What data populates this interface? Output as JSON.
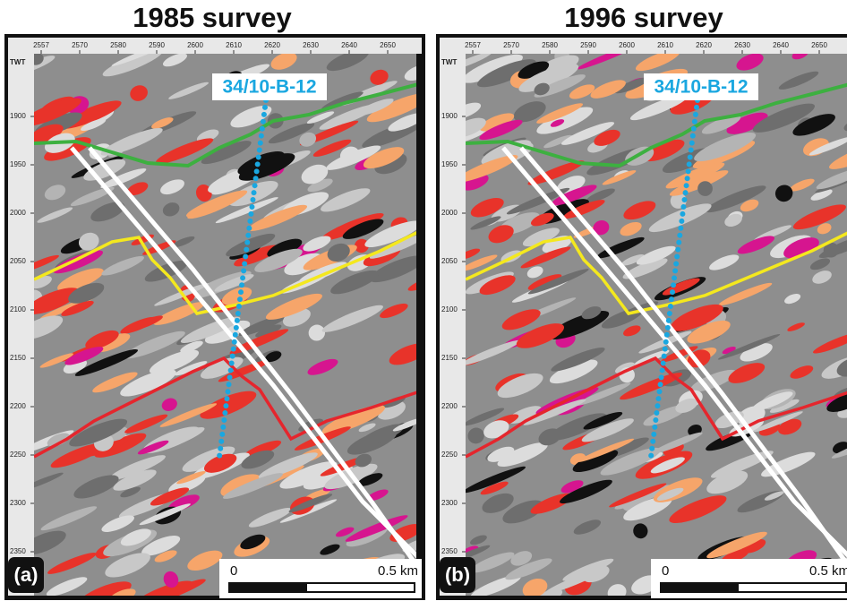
{
  "panels": [
    {
      "title": "1985 survey",
      "label": "(a)",
      "well": "34/10-B-12"
    },
    {
      "title": "1996 survey",
      "label": "(b)",
      "well": "34/10-B-12"
    }
  ],
  "x_ticks": [
    2557,
    2570,
    2580,
    2590,
    2600,
    2610,
    2620,
    2630,
    2640,
    2650
  ],
  "y_axis_label": "TWT",
  "y_ticks": [
    1900,
    1950,
    2000,
    2050,
    2100,
    2150,
    2200,
    2250,
    2300,
    2350
  ],
  "scale_bar": {
    "start": "0",
    "end": "0.5 km"
  }
}
